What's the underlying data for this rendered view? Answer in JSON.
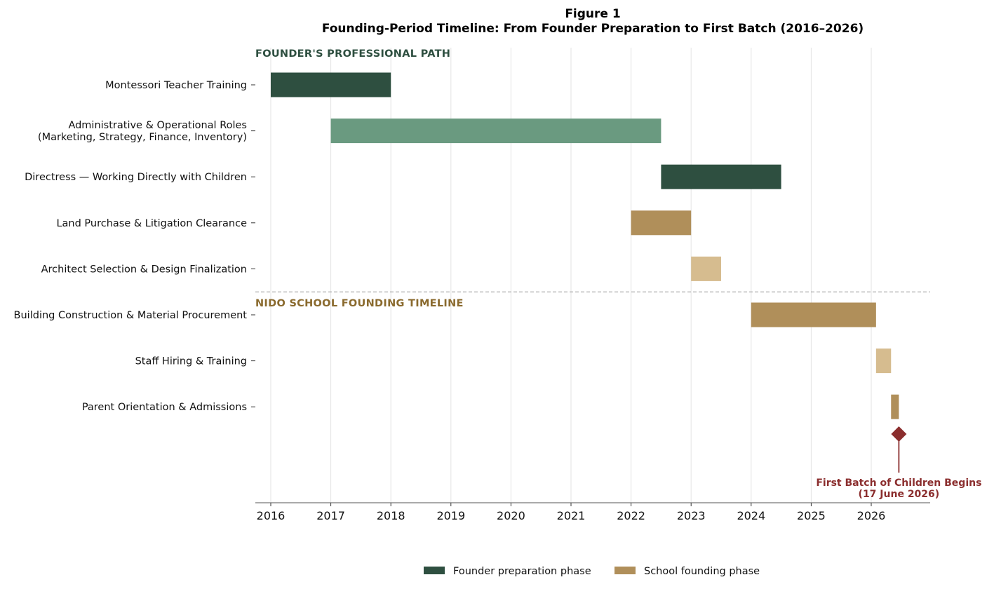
{
  "figure_label": "Figure 1",
  "chart_data": {
    "type": "gantt",
    "title": "Founding-Period Timeline: From Founder Preparation to First Batch (2016–2026)",
    "xlabel": "",
    "ylabel": "",
    "xlim": [
      2015.75,
      2027.0
    ],
    "x_ticks": [
      2016,
      2017,
      2018,
      2019,
      2020,
      2021,
      2022,
      2023,
      2024,
      2025,
      2026
    ],
    "grid": "vertical",
    "legend_position": "bottom-center",
    "sections": [
      {
        "label": "FOUNDER'S PROFESSIONAL PATH",
        "color": "#2e4f40"
      },
      {
        "label": "NIDO SCHOOL FOUNDING TIMELINE",
        "color": "#8a6a2e"
      }
    ],
    "tasks": [
      {
        "label": [
          "Montessori Teacher Training"
        ],
        "start": 2016.0,
        "end": 2018.0,
        "color": "#2e4f40"
      },
      {
        "label": [
          "Administrative & Operational Roles",
          "(Marketing, Strategy, Finance, Inventory)"
        ],
        "start": 2017.0,
        "end": 2022.5,
        "color": "#6a9a80"
      },
      {
        "label": [
          "Directress — Working Directly with Children"
        ],
        "start": 2022.5,
        "end": 2024.5,
        "color": "#2e4f40"
      },
      {
        "label": [
          "Land Purchase & Litigation Clearance"
        ],
        "start": 2022.0,
        "end": 2023.0,
        "color": "#b08f5a"
      },
      {
        "label": [
          "Architect Selection & Design Finalization"
        ],
        "start": 2023.0,
        "end": 2023.5,
        "color": "#d6bc8f"
      },
      {
        "label": [
          "Building Construction & Material Procurement"
        ],
        "start": 2024.0,
        "end": 2026.08,
        "color": "#b08f5a"
      },
      {
        "label": [
          "Staff Hiring & Training"
        ],
        "start": 2026.08,
        "end": 2026.33,
        "color": "#d6bc8f"
      },
      {
        "label": [
          "Parent Orientation & Admissions"
        ],
        "start": 2026.33,
        "end": 2026.46,
        "color": "#b08f5a"
      }
    ],
    "milestone": {
      "date": 2026.46,
      "label": [
        "First Batch of Children Begins",
        "(17 June 2026)"
      ],
      "color": "#8b2e2e"
    },
    "legend": [
      {
        "label": "Founder preparation phase",
        "color": "#2e4f40"
      },
      {
        "label": "School founding phase",
        "color": "#b08f5a"
      }
    ]
  }
}
